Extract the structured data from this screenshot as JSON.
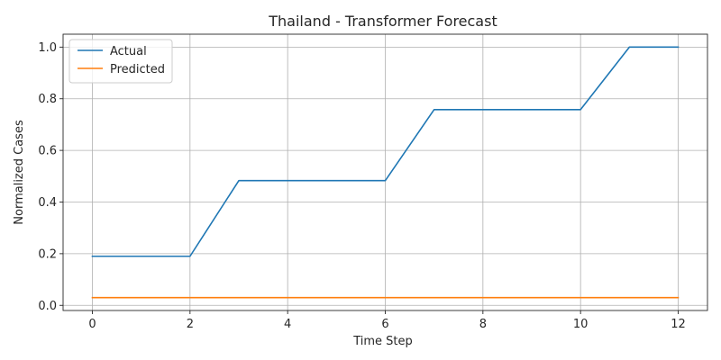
{
  "chart_data": {
    "type": "line",
    "title": "Thailand - Transformer Forecast",
    "xlabel": "Time Step",
    "ylabel": "Normalized Cases",
    "xlim": [
      -0.6,
      12.6
    ],
    "ylim": [
      -0.02,
      1.05
    ],
    "xticks": [
      0,
      2,
      4,
      6,
      8,
      10,
      12
    ],
    "yticks": [
      0.0,
      0.2,
      0.4,
      0.6,
      0.8,
      1.0
    ],
    "grid": true,
    "legend_position": "top-left",
    "x": [
      0,
      1,
      2,
      3,
      4,
      5,
      6,
      7,
      8,
      9,
      10,
      11,
      12
    ],
    "series": [
      {
        "name": "Actual",
        "color": "#1f77b4",
        "values": [
          0.19,
          0.19,
          0.19,
          0.483,
          0.483,
          0.483,
          0.483,
          0.758,
          0.758,
          0.758,
          0.758,
          1.0,
          1.0
        ]
      },
      {
        "name": "Predicted",
        "color": "#ff7f0e",
        "values": [
          0.03,
          0.03,
          0.03,
          0.03,
          0.03,
          0.03,
          0.03,
          0.03,
          0.03,
          0.03,
          0.03,
          0.03,
          0.03
        ]
      }
    ]
  }
}
